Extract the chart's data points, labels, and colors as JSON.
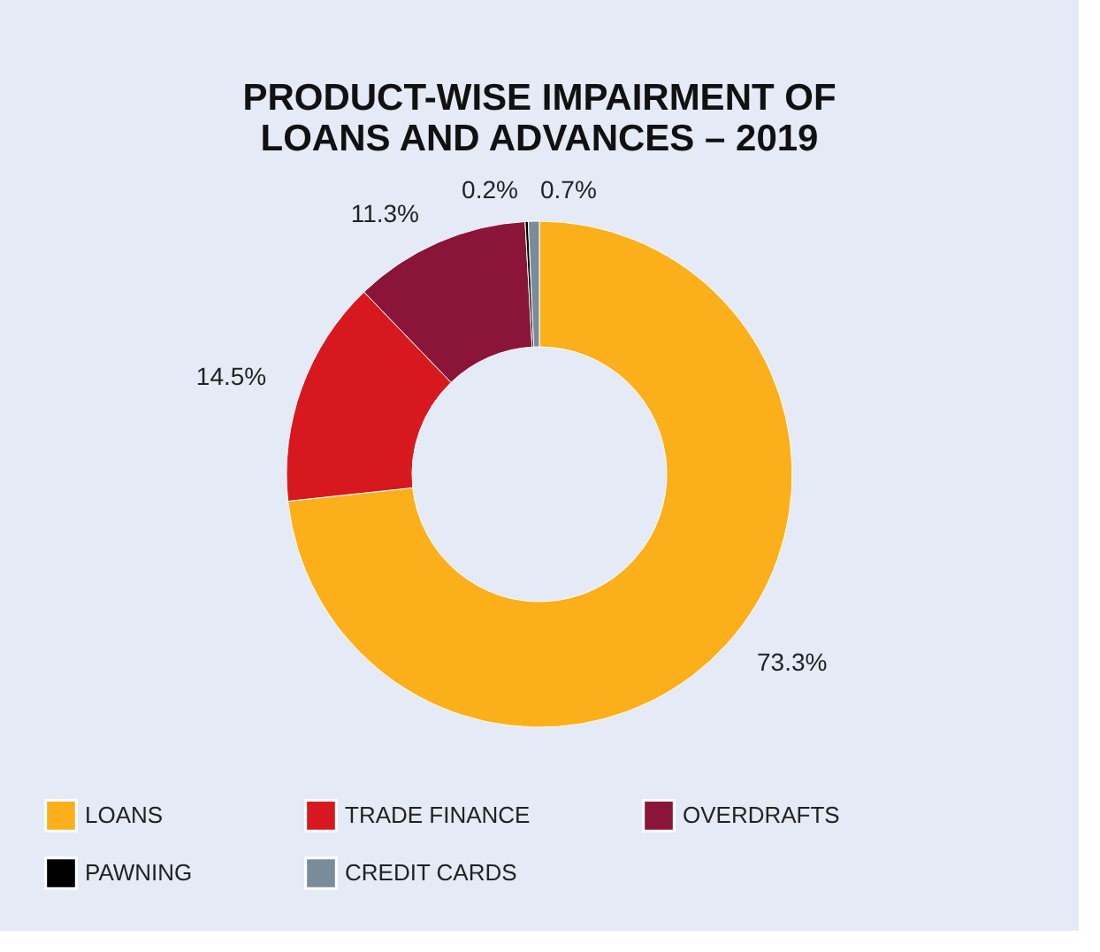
{
  "chart_data": {
    "type": "donut",
    "title": "PRODUCT-WISE IMPAIRMENT OF\nLOANS AND ADVANCES – 2019",
    "categories": [
      "LOANS",
      "TRADE FINANCE",
      "OVERDRAFTS",
      "PAWNING",
      "CREDIT CARDS"
    ],
    "values": [
      73.3,
      14.5,
      11.3,
      0.2,
      0.7
    ],
    "colors": [
      "#fbb01b",
      "#d7191f",
      "#8b1538",
      "#000000",
      "#7a8c99"
    ],
    "value_labels": [
      "73.3%",
      "14.5%",
      "11.3%",
      "0.2%",
      "0.7%"
    ],
    "legend": "bottom"
  }
}
